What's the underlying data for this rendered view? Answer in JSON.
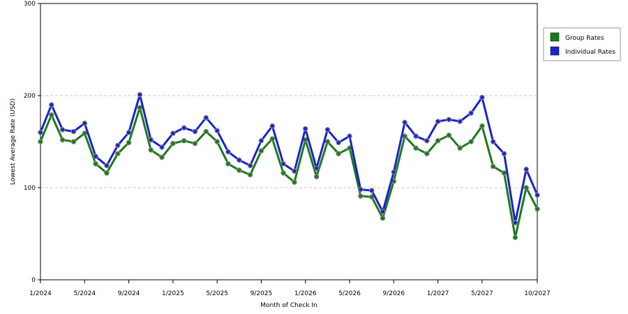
{
  "chart_data": {
    "type": "line",
    "xlabel": "Month of Check In",
    "ylabel": "Lowest Average Rate (USD)",
    "ylim": [
      0,
      300
    ],
    "y_ticks": [
      0,
      100,
      200,
      300
    ],
    "x_tick_labels": [
      "1/2024",
      "5/2024",
      "9/2024",
      "1/2025",
      "5/2025",
      "9/2025",
      "1/2026",
      "5/2026",
      "9/2026",
      "1/2027",
      "5/2027",
      "10/2027"
    ],
    "x_tick_months": [
      "2024-01",
      "2024-05",
      "2024-09",
      "2025-01",
      "2025-05",
      "2025-09",
      "2026-01",
      "2026-05",
      "2026-09",
      "2027-01",
      "2027-05",
      "2027-10"
    ],
    "x_months": [
      "2024-01",
      "2024-02",
      "2024-03",
      "2024-04",
      "2024-05",
      "2024-06",
      "2024-07",
      "2024-08",
      "2024-09",
      "2024-10",
      "2024-11",
      "2024-12",
      "2025-01",
      "2025-02",
      "2025-03",
      "2025-04",
      "2025-05",
      "2025-06",
      "2025-07",
      "2025-08",
      "2025-09",
      "2025-10",
      "2025-11",
      "2025-12",
      "2026-01",
      "2026-02",
      "2026-03",
      "2026-04",
      "2026-05",
      "2026-06",
      "2026-07",
      "2026-08",
      "2026-09",
      "2026-10",
      "2026-11",
      "2026-12",
      "2027-01",
      "2027-02",
      "2027-03",
      "2027-04",
      "2027-05",
      "2027-06",
      "2027-07",
      "2027-08",
      "2027-09",
      "2027-10"
    ],
    "grid": true,
    "legend_position": "right",
    "series": [
      {
        "name": "Group Rates",
        "color": "#1a7a1a",
        "values": [
          150,
          179,
          152,
          150,
          159,
          126,
          116,
          137,
          149,
          187,
          141,
          133,
          148,
          151,
          148,
          161,
          150,
          126,
          119,
          114,
          140,
          153,
          116,
          106,
          152,
          112,
          150,
          137,
          143,
          91,
          90,
          67,
          107,
          156,
          143,
          137,
          151,
          157,
          143,
          150,
          167,
          123,
          116,
          46,
          100,
          77
        ]
      },
      {
        "name": "Individual Rates",
        "color": "#1a22cc",
        "values": [
          160,
          190,
          163,
          161,
          170,
          134,
          124,
          146,
          160,
          201,
          152,
          144,
          159,
          165,
          161,
          176,
          162,
          139,
          130,
          124,
          151,
          167,
          126,
          118,
          164,
          121,
          163,
          149,
          156,
          98,
          97,
          74,
          117,
          171,
          156,
          151,
          172,
          174,
          172,
          181,
          198,
          150,
          137,
          62,
          120,
          92
        ]
      }
    ]
  }
}
